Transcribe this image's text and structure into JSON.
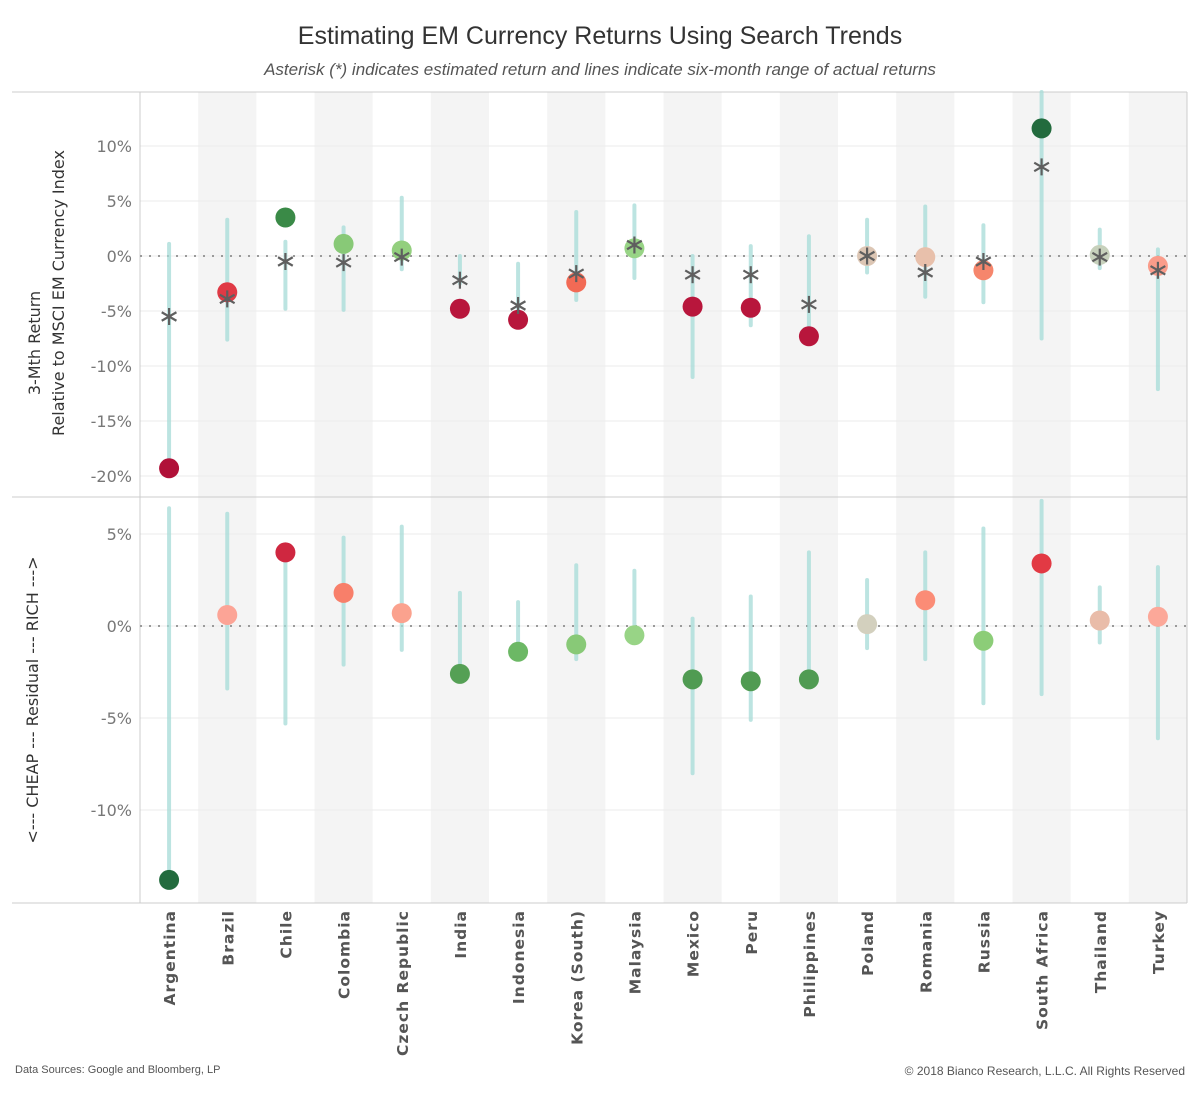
{
  "title": "Estimating EM Currency Returns Using Search Trends",
  "subtitle": "Asterisk (*) indicates estimated return and lines indicate six-month range of actual returns",
  "footer": {
    "source": "Data Sources: Google and Bloomberg, LP",
    "copyright": "© 2018 Bianco Research, L.L.C. All Rights Reserved"
  },
  "colors": {
    "range_line": "#a6dcd8",
    "asterisk": "#5f5f5f",
    "band": "#f4f4f4",
    "zero_line": "#9a9a9a"
  },
  "chart_data": [
    {
      "type": "scatter",
      "name": "top-panel",
      "ylabel_line1": "3-Mth Return",
      "ylabel_line2": "Relative to MSCI EM Currency Index",
      "ylim": [
        -21.5,
        15
      ],
      "yticks": [
        10,
        5,
        0,
        -5,
        -10,
        -15,
        -20
      ],
      "ytick_labels": [
        "10%",
        "5%",
        "0%",
        "-5%",
        "-10%",
        "-15%",
        "-20%"
      ],
      "grid": true,
      "categories": [
        "Argentina",
        "Brazil",
        "Chile",
        "Colombia",
        "Czech Republic",
        "India",
        "Indonesia",
        "Korea (South)",
        "Malaysia",
        "Mexico",
        "Peru",
        "Philippines",
        "Poland",
        "Romania",
        "Russia",
        "South Africa",
        "Thailand",
        "Turkey"
      ],
      "actual": [
        -19.3,
        -3.3,
        3.5,
        1.1,
        0.5,
        -4.8,
        -5.8,
        -2.4,
        0.7,
        -4.6,
        -4.7,
        -7.3,
        0.0,
        -0.1,
        -1.3,
        11.6,
        0.1,
        -0.9
      ],
      "estimated": [
        -5.5,
        -3.9,
        -0.5,
        -0.6,
        -0.1,
        -2.2,
        -4.5,
        -1.6,
        1.0,
        -1.7,
        -1.7,
        -4.4,
        0.0,
        -1.5,
        -0.5,
        8.1,
        -0.1,
        -1.3
      ],
      "range_high": [
        1.1,
        3.3,
        1.3,
        2.6,
        5.3,
        0.0,
        -0.7,
        4.0,
        4.6,
        0.0,
        0.9,
        1.8,
        3.3,
        4.5,
        2.8,
        15,
        2.4,
        0.6
      ],
      "range_low": [
        -19.3,
        -7.6,
        -4.8,
        -4.9,
        -1.2,
        -2.5,
        -4.8,
        -4.0,
        -2.0,
        -11.0,
        -6.3,
        -7.3,
        -1.5,
        -3.7,
        -4.2,
        -7.5,
        -1.1,
        -12.1
      ],
      "point_colors": [
        "#b01038",
        "#e03a45",
        "#3a8a47",
        "#88c977",
        "#93cf7e",
        "#b8163c",
        "#b8163c",
        "#f26a55",
        "#98d486",
        "#b8163c",
        "#b8163c",
        "#b8163c",
        "#dcc6b4",
        "#e8c0ab",
        "#f6866c",
        "#236b3e",
        "#c7d1bc",
        "#fa9c8a"
      ]
    },
    {
      "type": "scatter",
      "name": "bottom-panel",
      "ylabel": "<--- CHEAP --- Residual --- RICH --->",
      "ylim": [
        -15,
        6.8
      ],
      "yticks": [
        5,
        0,
        -5,
        -10
      ],
      "ytick_labels": [
        "5%",
        "0%",
        "-5%",
        "-10%"
      ],
      "grid": true,
      "categories": [
        "Argentina",
        "Brazil",
        "Chile",
        "Colombia",
        "Czech Republic",
        "India",
        "Indonesia",
        "Korea (South)",
        "Malaysia",
        "Mexico",
        "Peru",
        "Philippines",
        "Poland",
        "Romania",
        "Russia",
        "South Africa",
        "Thailand",
        "Turkey"
      ],
      "residual": [
        -13.8,
        0.6,
        4.0,
        1.8,
        0.7,
        -2.6,
        -1.4,
        -1.0,
        -0.5,
        -2.9,
        -3.0,
        -2.9,
        0.1,
        1.4,
        -0.8,
        3.4,
        0.3,
        0.5
      ],
      "range_high": [
        6.4,
        6.1,
        4.0,
        4.8,
        5.4,
        1.8,
        1.3,
        3.3,
        3.0,
        0.4,
        1.6,
        4.0,
        2.5,
        4.0,
        5.3,
        6.8,
        2.1,
        3.2
      ],
      "range_low": [
        -13.8,
        -3.4,
        -5.3,
        -2.1,
        -1.3,
        -2.6,
        -1.4,
        -1.8,
        -0.5,
        -8.0,
        -5.1,
        -2.9,
        -1.2,
        -1.8,
        -4.2,
        -3.7,
        -0.9,
        -6.1
      ],
      "point_colors": [
        "#236b3e",
        "#fca496",
        "#cf2740",
        "#f87f6a",
        "#fba28e",
        "#55a055",
        "#6cb865",
        "#88c977",
        "#98d486",
        "#509b52",
        "#509b52",
        "#509b52",
        "#d3d0be",
        "#fb8c76",
        "#8ccd78",
        "#e23a44",
        "#e9bca9",
        "#fca899"
      ]
    }
  ]
}
